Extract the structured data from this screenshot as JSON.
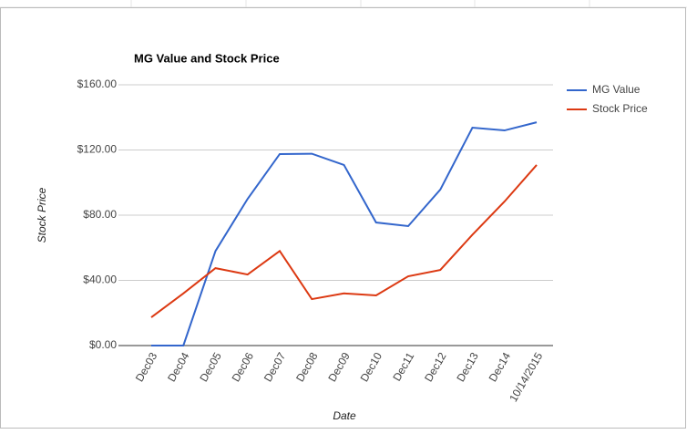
{
  "chart_data": {
    "type": "line",
    "title": "MG Value and Stock Price",
    "x_label": "Date",
    "y_label": "Stock Price",
    "categories": [
      "Dec03",
      "Dec04",
      "Dec05",
      "Dec06",
      "Dec07",
      "Dec08",
      "Dec09",
      "Dec10",
      "Dec11",
      "Dec12",
      "Dec13",
      "Dec14",
      "10/14/2015"
    ],
    "series": [
      {
        "name": "MG Value",
        "color": "#3366cc",
        "values": [
          0,
          0,
          58,
          90,
          117.5,
          117.7,
          110.8,
          75.5,
          73.3,
          95.7,
          133.7,
          132,
          137
        ]
      },
      {
        "name": "Stock Price",
        "color": "#dc3912",
        "values": [
          17.3,
          32,
          47.5,
          43.6,
          58,
          28.5,
          32,
          30.8,
          42.5,
          46.4,
          68,
          88.4,
          110.8
        ]
      }
    ],
    "ylim": [
      0,
      160
    ],
    "yticks": [
      {
        "value": 0,
        "label": "$0.00"
      },
      {
        "value": 40,
        "label": "$40.00"
      },
      {
        "value": 80,
        "label": "$80.00"
      },
      {
        "value": 120,
        "label": "$120.00"
      },
      {
        "value": 160,
        "label": "$160.00"
      }
    ],
    "grid": true,
    "legend": "right"
  }
}
